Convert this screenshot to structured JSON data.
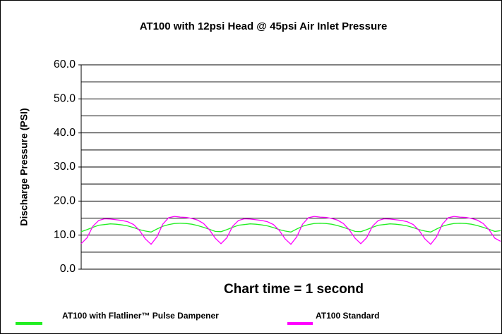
{
  "chart_data": {
    "type": "line",
    "title": "AT100 with 12psi Head @ 45psi Air Inlet Pressure",
    "y_label": "Discharge Pressure (PSI)",
    "x_label": "Chart time = 1 second",
    "ylim": [
      0,
      60
    ],
    "yticks": [
      {
        "value": 0,
        "label": "0.0"
      },
      {
        "value": 10,
        "label": "10.0"
      },
      {
        "value": 20,
        "label": "20.0"
      },
      {
        "value": 30,
        "label": "30.0"
      },
      {
        "value": 40,
        "label": "40.0"
      },
      {
        "value": 50,
        "label": "50.0"
      },
      {
        "value": 60,
        "label": "60.0"
      }
    ],
    "minor_gridlines": [
      5,
      15,
      25,
      35,
      45,
      55
    ],
    "grid": true,
    "legend": "bottom",
    "series": [
      {
        "name": "AT100 with Flatliner™ Pulse Dampener",
        "color": "#22ee22",
        "values": [
          11.0,
          11.6,
          12.3,
          12.9,
          13.1,
          13.3,
          13.2,
          13.0,
          12.7,
          12.2,
          11.6,
          11.2,
          10.9,
          11.8,
          12.6,
          13.1,
          13.4,
          13.5,
          13.4,
          13.2,
          12.8,
          12.3,
          11.7,
          11.1,
          11.0,
          11.6,
          12.3,
          12.9,
          13.1,
          13.3,
          13.2,
          13.0,
          12.7,
          12.2,
          11.6,
          11.2,
          10.9,
          11.8,
          12.6,
          13.1,
          13.4,
          13.5,
          13.4,
          13.2,
          12.8,
          12.3,
          11.7,
          11.1,
          11.0,
          11.6,
          12.3,
          12.9,
          13.1,
          13.3,
          13.2,
          13.0,
          12.7,
          12.2,
          11.6,
          11.2,
          10.9,
          11.8,
          12.6,
          13.1,
          13.4,
          13.5,
          13.4,
          13.2,
          12.8,
          12.3,
          11.7,
          11.1,
          11.3
        ]
      },
      {
        "name": "AT100 Standard",
        "color": "#ff00ff",
        "values": [
          7.5,
          9.2,
          12.6,
          14.3,
          14.8,
          14.7,
          14.5,
          14.3,
          13.9,
          13.1,
          11.4,
          8.9,
          7.3,
          9.5,
          13.2,
          15.1,
          15.5,
          15.3,
          15.2,
          14.9,
          14.4,
          13.4,
          11.6,
          9.1,
          7.5,
          9.2,
          12.6,
          14.3,
          14.8,
          14.7,
          14.5,
          14.3,
          13.9,
          13.1,
          11.4,
          8.9,
          7.3,
          9.5,
          13.2,
          15.1,
          15.5,
          15.3,
          15.2,
          14.9,
          14.4,
          13.4,
          11.6,
          9.1,
          7.5,
          9.2,
          12.6,
          14.3,
          14.8,
          14.7,
          14.5,
          14.3,
          13.9,
          13.1,
          11.4,
          8.9,
          7.3,
          9.5,
          13.2,
          15.1,
          15.5,
          15.3,
          15.2,
          14.9,
          14.4,
          13.4,
          11.6,
          9.1,
          8.2
        ]
      }
    ]
  }
}
